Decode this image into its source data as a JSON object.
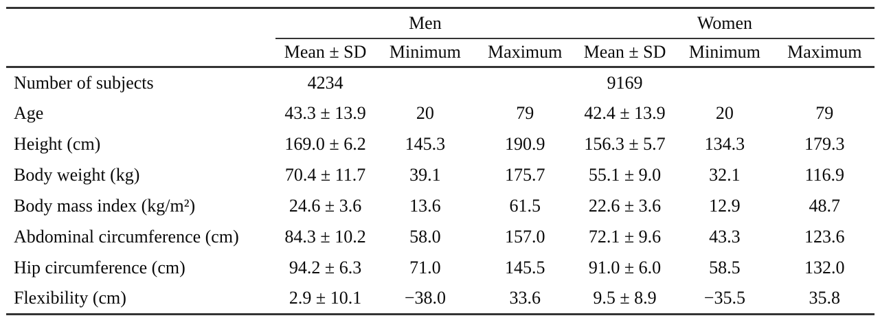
{
  "table": {
    "groups": [
      {
        "label": "Men"
      },
      {
        "label": "Women"
      }
    ],
    "subheaders": [
      "Mean ± SD",
      "Minimum",
      "Maximum",
      "Mean ± SD",
      "Minimum",
      "Maximum"
    ],
    "rows": [
      {
        "label": "Number of subjects",
        "values": [
          "4234",
          "",
          "",
          "9169",
          "",
          ""
        ]
      },
      {
        "label": "Age",
        "values": [
          "43.3 ± 13.9",
          "20",
          "79",
          "42.4 ± 13.9",
          "20",
          "79"
        ]
      },
      {
        "label": "Height (cm)",
        "values": [
          "169.0 ± 6.2",
          "145.3",
          "190.9",
          "156.3 ± 5.7",
          "134.3",
          "179.3"
        ]
      },
      {
        "label": "Body weight (kg)",
        "values": [
          "70.4 ± 11.7",
          "39.1",
          "175.7",
          "55.1 ± 9.0",
          "32.1",
          "116.9"
        ]
      },
      {
        "label": "Body mass index (kg/m²)",
        "values": [
          "24.6 ± 3.6",
          "13.6",
          "61.5",
          "22.6 ± 3.6",
          "12.9",
          "48.7"
        ]
      },
      {
        "label": "Abdominal circumference (cm)",
        "values": [
          "84.3 ± 10.2",
          "58.0",
          "157.0",
          "72.1 ± 9.6",
          "43.3",
          "123.6"
        ]
      },
      {
        "label": "Hip circumference (cm)",
        "values": [
          "94.2 ± 6.3",
          "71.0",
          "145.5",
          "91.0 ± 6.0",
          "58.5",
          "132.0"
        ]
      },
      {
        "label": "Flexibility (cm)",
        "values": [
          "2.9 ± 10.1",
          "−38.0",
          "33.6",
          "9.5 ± 8.9",
          "−35.5",
          "35.8"
        ]
      }
    ]
  }
}
